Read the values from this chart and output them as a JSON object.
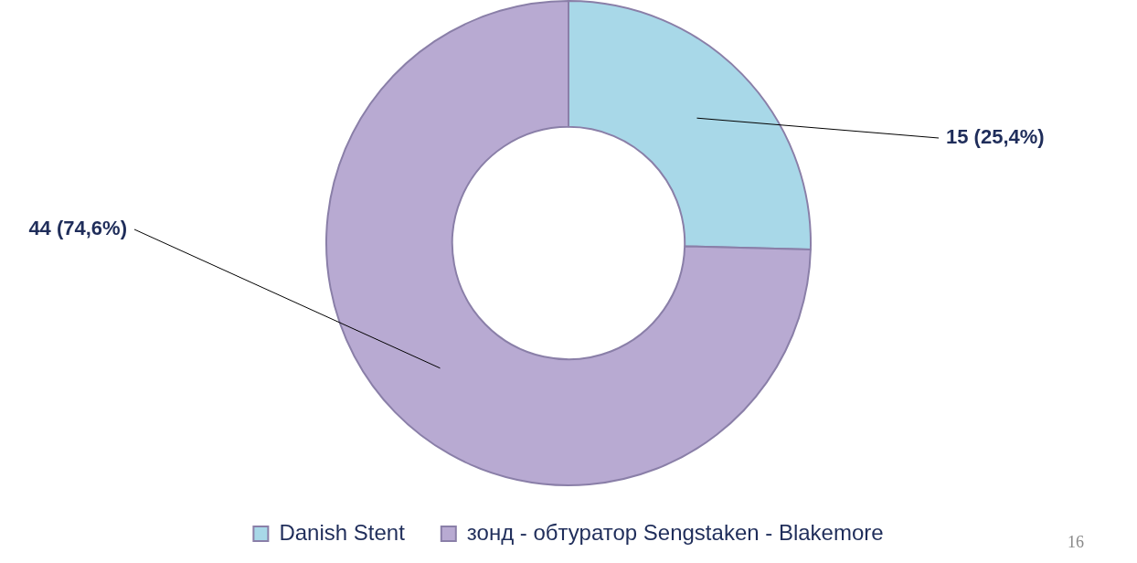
{
  "chart_data": {
    "type": "donut",
    "categories": [
      "Danish Stent",
      "зонд - обтуратор Sengstaken - Blakemore"
    ],
    "values": [
      15,
      44
    ],
    "colors": [
      "#a8d8e8",
      "#b8aad2"
    ],
    "value_labels": [
      "15 (25,4%)",
      "44 (74,6%)"
    ],
    "legend": "bottom",
    "annotations": [
      "16"
    ]
  }
}
